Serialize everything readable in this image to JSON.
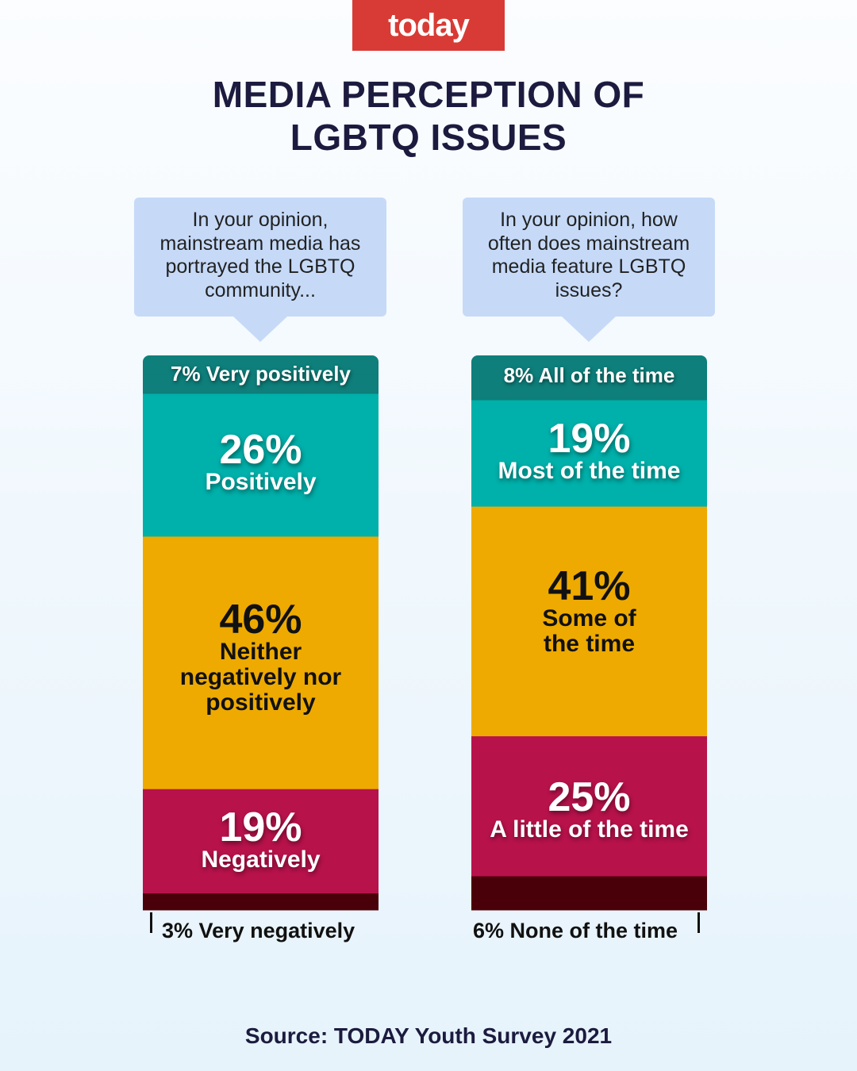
{
  "logo": {
    "text": "today",
    "color": "#d83b35"
  },
  "title": {
    "line1": "MEDIA PERCEPTION OF",
    "line2": "LGBTQ ISSUES"
  },
  "source": "Source: TODAY Youth Survey 2021",
  "colors": {
    "very_positive": "#0e7f7b",
    "positive": "#00b0aa",
    "neutral": "#eeaa00",
    "negative": "#b8124b",
    "very_negative": "#4a0008",
    "bubble": "#c6daf8"
  },
  "chart_data": [
    {
      "type": "bar",
      "stacked": true,
      "question": "In your opinion, mainstream media has portrayed the LGBTQ community...",
      "unit": "%",
      "categories": [
        "Very positively",
        "Positively",
        "Neither negatively nor positively",
        "Negatively",
        "Very negatively"
      ],
      "values": [
        7,
        26,
        46,
        19,
        3
      ],
      "display": [
        {
          "pct": "7%",
          "label": "Very positively"
        },
        {
          "pct": "26%",
          "label": "Positively"
        },
        {
          "pct": "46%",
          "label": "Neither negatively nor positively"
        },
        {
          "pct": "19%",
          "label": "Negatively"
        },
        {
          "pct": "3%",
          "label": "Very negatively"
        }
      ]
    },
    {
      "type": "bar",
      "stacked": true,
      "question": "In your opinion, how often does mainstream media feature LGBTQ issues?",
      "unit": "%",
      "categories": [
        "All of the time",
        "Most of the time",
        "Some of the time",
        "A little of the time",
        "None of the time"
      ],
      "values": [
        8,
        19,
        41,
        25,
        6
      ],
      "display": [
        {
          "pct": "8%",
          "label": "All of the time"
        },
        {
          "pct": "19%",
          "label": "Most of the time"
        },
        {
          "pct": "41%",
          "label": "Some of the time"
        },
        {
          "pct": "25%",
          "label": "A little of the time"
        },
        {
          "pct": "6%",
          "label": "None of the time"
        }
      ]
    }
  ]
}
